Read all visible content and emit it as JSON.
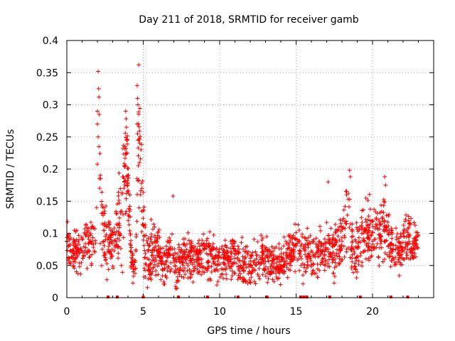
{
  "chart_data": {
    "type": "scatter",
    "title": "Day 211 of 2018, SRMTID for receiver gamb",
    "xlabel": "GPS time / hours",
    "ylabel": "SRMTID / TECUs",
    "xlim": [
      0,
      24
    ],
    "ylim": [
      0,
      0.4
    ],
    "grid": true,
    "marker": "+",
    "series_color": "#ff0000",
    "x_ticks": [
      0,
      5,
      10,
      15,
      20
    ],
    "x_tick_labels": [
      "0",
      "5",
      "10",
      "15",
      "20"
    ],
    "y_ticks": [
      0,
      0.05,
      0.1,
      0.15,
      0.2,
      0.25,
      0.3,
      0.35,
      0.4
    ],
    "y_tick_labels": [
      "0",
      "0.05",
      "0.1",
      "0.15",
      "0.2",
      "0.25",
      "0.3",
      "0.35",
      "0.4"
    ],
    "series": [
      {
        "name": "SRMTID",
        "profile": [
          [
            0.0,
            0.09,
            0.018
          ],
          [
            0.3,
            0.075,
            0.02
          ],
          [
            0.6,
            0.07,
            0.02
          ],
          [
            1.0,
            0.08,
            0.02
          ],
          [
            1.4,
            0.085,
            0.02
          ],
          [
            1.7,
            0.09,
            0.02
          ],
          [
            1.9,
            0.1,
            0.025
          ],
          [
            2.0,
            0.2,
            0.08
          ],
          [
            2.1,
            0.24,
            0.09
          ],
          [
            2.3,
            0.12,
            0.04
          ],
          [
            2.6,
            0.09,
            0.03
          ],
          [
            3.0,
            0.08,
            0.03
          ],
          [
            3.3,
            0.1,
            0.03
          ],
          [
            3.6,
            0.14,
            0.05
          ],
          [
            3.9,
            0.22,
            0.05
          ],
          [
            4.2,
            0.07,
            0.02
          ],
          [
            4.5,
            0.04,
            0.012
          ],
          [
            4.7,
            0.27,
            0.06
          ],
          [
            4.9,
            0.16,
            0.06
          ],
          [
            5.1,
            0.07,
            0.03
          ],
          [
            5.4,
            0.06,
            0.03
          ],
          [
            5.8,
            0.08,
            0.025
          ],
          [
            6.3,
            0.05,
            0.02
          ],
          [
            6.7,
            0.07,
            0.02
          ],
          [
            7.2,
            0.045,
            0.02
          ],
          [
            7.7,
            0.07,
            0.025
          ],
          [
            8.3,
            0.06,
            0.02
          ],
          [
            8.8,
            0.065,
            0.02
          ],
          [
            9.2,
            0.07,
            0.025
          ],
          [
            9.8,
            0.055,
            0.02
          ],
          [
            10.4,
            0.06,
            0.02
          ],
          [
            11.0,
            0.06,
            0.02
          ],
          [
            11.6,
            0.045,
            0.02
          ],
          [
            12.2,
            0.055,
            0.02
          ],
          [
            12.8,
            0.065,
            0.02
          ],
          [
            13.4,
            0.06,
            0.02
          ],
          [
            14.0,
            0.05,
            0.02
          ],
          [
            14.5,
            0.07,
            0.02
          ],
          [
            15.0,
            0.08,
            0.02
          ],
          [
            15.5,
            0.06,
            0.02
          ],
          [
            16.0,
            0.065,
            0.02
          ],
          [
            16.5,
            0.07,
            0.02
          ],
          [
            17.0,
            0.08,
            0.025
          ],
          [
            17.5,
            0.07,
            0.025
          ],
          [
            18.0,
            0.09,
            0.025
          ],
          [
            18.4,
            0.13,
            0.04
          ],
          [
            18.8,
            0.06,
            0.02
          ],
          [
            19.3,
            0.1,
            0.025
          ],
          [
            19.8,
            0.1,
            0.03
          ],
          [
            20.3,
            0.09,
            0.03
          ],
          [
            20.8,
            0.12,
            0.03
          ],
          [
            21.2,
            0.08,
            0.025
          ],
          [
            21.7,
            0.07,
            0.02
          ],
          [
            22.2,
            0.1,
            0.025
          ],
          [
            22.6,
            0.08,
            0.02
          ],
          [
            22.9,
            0.09,
            0.015
          ]
        ],
        "peaks": [
          [
            2.05,
            0.352
          ],
          [
            2.08,
            0.325
          ],
          [
            2.1,
            0.312
          ],
          [
            2.0,
            0.29
          ],
          [
            2.12,
            0.285
          ],
          [
            2.0,
            0.27
          ],
          [
            2.05,
            0.25
          ],
          [
            2.1,
            0.235
          ],
          [
            4.6,
            0.33
          ],
          [
            4.62,
            0.31
          ],
          [
            4.65,
            0.3
          ],
          [
            4.6,
            0.27
          ],
          [
            4.63,
            0.255
          ],
          [
            3.85,
            0.29
          ],
          [
            3.9,
            0.265
          ],
          [
            3.95,
            0.245
          ],
          [
            3.95,
            0.225
          ],
          [
            4.85,
            0.23
          ],
          [
            6.95,
            0.158
          ],
          [
            17.1,
            0.18
          ],
          [
            18.5,
            0.198
          ],
          [
            18.55,
            0.188
          ],
          [
            20.8,
            0.188
          ],
          [
            20.85,
            0.175
          ]
        ],
        "start_hour": 0.0,
        "end_hour": 23.0,
        "point_count": 1900
      }
    ],
    "bottom_markers": [
      2.7,
      3.3,
      5.0,
      7.3,
      9.2,
      11.2,
      13.1,
      15.3,
      15.5,
      15.7,
      17.2,
      19.2,
      21.2,
      22.3
    ]
  }
}
